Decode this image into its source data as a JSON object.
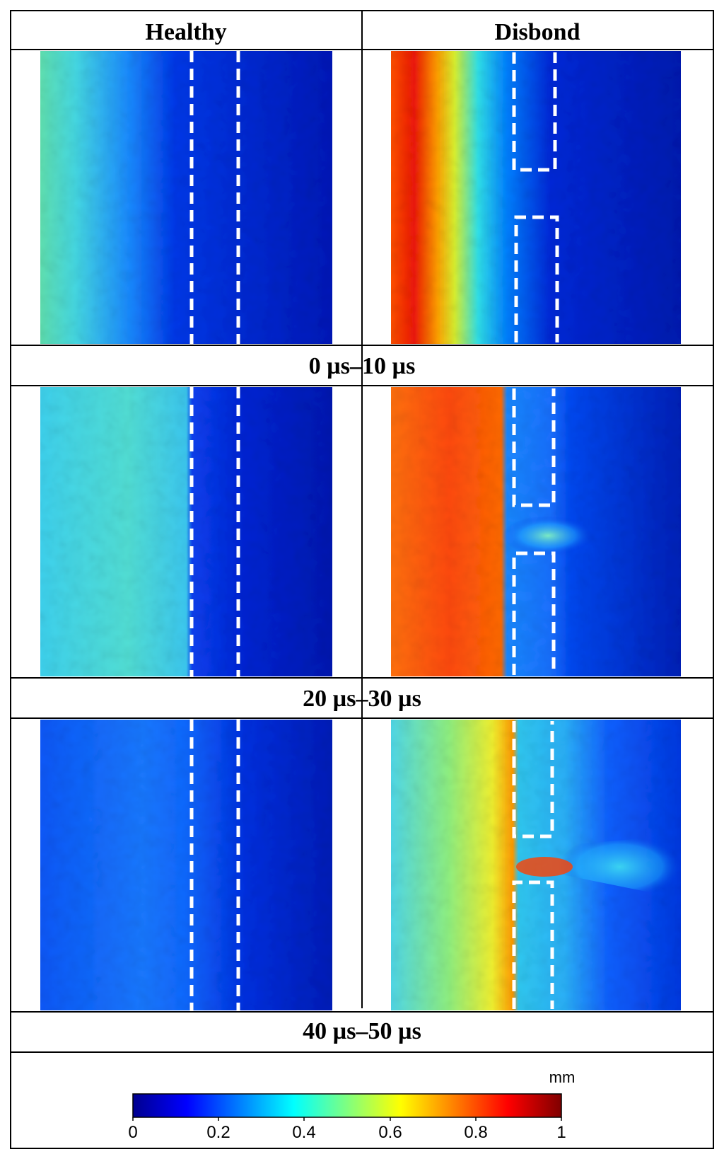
{
  "columns": [
    "Healthy",
    "Disbond"
  ],
  "time_windows": [
    "0 µs–10 µs",
    "20 µs–30 µs",
    "40 µs–50 µs"
  ],
  "colorbar": {
    "unit": "mm",
    "ticks": [
      "0",
      "0.2",
      "0.4",
      "0.6",
      "0.8",
      "1"
    ],
    "range": [
      0,
      1
    ],
    "colormap": [
      "#00008f",
      "#0000ff",
      "#00ffff",
      "#ffff00",
      "#ff0000",
      "#800000"
    ]
  },
  "colors": {
    "background": "#00009c",
    "dashed_outline": "#ffffff",
    "border": "#000000"
  }
}
